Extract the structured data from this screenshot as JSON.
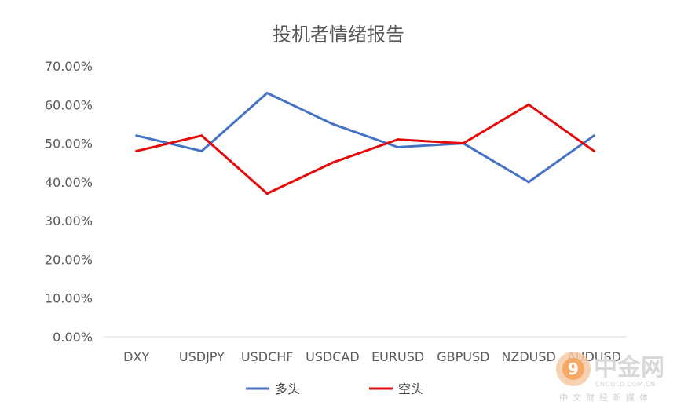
{
  "chart_data": {
    "type": "line",
    "title": "投机者情绪报告",
    "categories": [
      "DXY",
      "USDJPY",
      "USDCHF",
      "USDCAD",
      "EURUSD",
      "GBPUSD",
      "NZDUSD",
      "AUDUSD"
    ],
    "series": [
      {
        "name": "多头",
        "color": "#4472c4",
        "values": [
          0.52,
          0.48,
          0.63,
          0.55,
          0.49,
          0.5,
          0.4,
          0.52
        ]
      },
      {
        "name": "空头",
        "color": "#e50b0b",
        "values": [
          0.48,
          0.52,
          0.37,
          0.45,
          0.51,
          0.5,
          0.6,
          0.48
        ]
      }
    ],
    "y_ticks": [
      "0.00%",
      "10.00%",
      "20.00%",
      "30.00%",
      "40.00%",
      "50.00%",
      "60.00%",
      "70.00%"
    ],
    "ylim": [
      0,
      0.7
    ],
    "grid": false,
    "legend_position": "bottom"
  },
  "watermark": {
    "brand": "中金网",
    "site": "CNGOLD.COM.CN",
    "tagline": "中文财经新媒体"
  }
}
